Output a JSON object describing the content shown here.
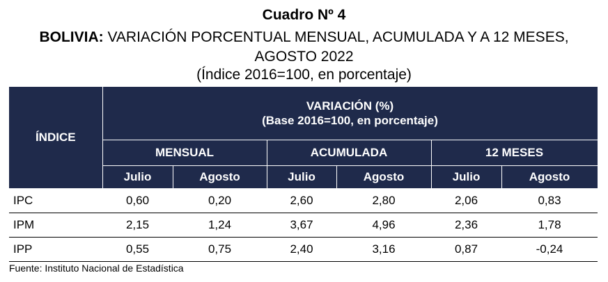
{
  "title": {
    "line1": "Cuadro Nº 4",
    "line2_bold": "BOLIVIA:",
    "line2_rest": " VARIACIÓN PORCENTUAL MENSUAL, ACUMULADA Y A 12 MESES,",
    "line3": "AGOSTO 2022",
    "line4": "(Índice 2016=100, en porcentaje)"
  },
  "table": {
    "index_header": "ÍNDICE",
    "variation_header": "VARIACIÓN (%)",
    "variation_subheader": "(Base 2016=100, en porcentaje)",
    "groups": [
      "MENSUAL",
      "ACUMULADA",
      "12 MESES"
    ],
    "months": [
      "Julio",
      "Agosto",
      "Julio",
      "Agosto",
      "Julio",
      "Agosto"
    ],
    "rows": [
      {
        "label": "IPC",
        "values": [
          "0,60",
          "0,20",
          "2,60",
          "2,80",
          "2,06",
          "0,83"
        ]
      },
      {
        "label": "IPM",
        "values": [
          "2,15",
          "1,24",
          "3,67",
          "4,96",
          "2,36",
          "1,78"
        ]
      },
      {
        "label": "IPP",
        "values": [
          "0,55",
          "0,75",
          "2,40",
          "3,16",
          "0,87",
          "-0,24"
        ]
      }
    ]
  },
  "source": "Fuente: Instituto Nacional de Estadística",
  "colors": {
    "header_bg": "#1f2a4b",
    "header_text": "#ffffff"
  }
}
